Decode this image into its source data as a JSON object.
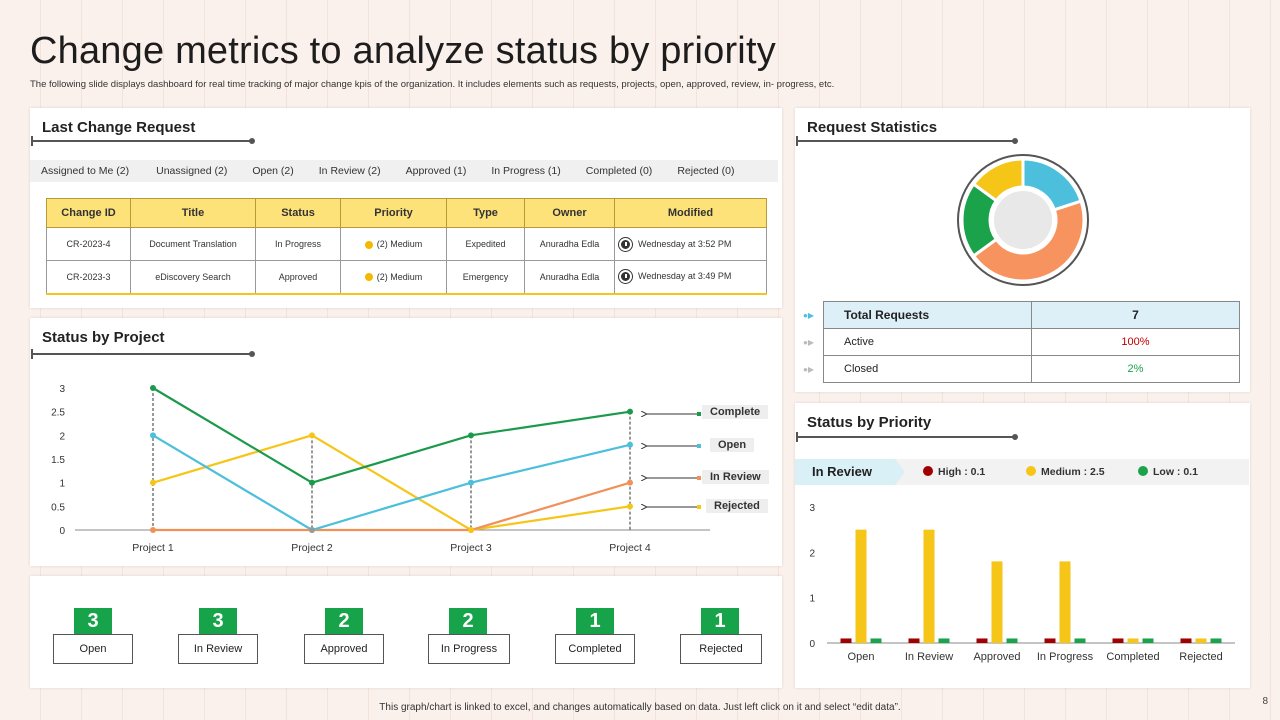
{
  "header": {
    "title": "Change metrics to analyze status by priority",
    "subtitle": "The following slide displays dashboard for real time tracking of major change kpis of the organization. It includes elements such as requests, projects, open, approved, review, in- progress, etc."
  },
  "last_change": {
    "title": "Last Change Request",
    "tabs": [
      "Assigned to Me (2)",
      "Unassigned (2)",
      "Open (2)",
      "In Review (2)",
      "Approved (1)",
      "In Progress (1)",
      "Completed  (0)",
      "Rejected (0)"
    ],
    "columns": [
      "Change ID",
      "Title",
      "Status",
      "Priority",
      "Type",
      "Owner",
      "Modified"
    ],
    "rows": [
      [
        "CR-2023-4",
        "Document Translation",
        "In Progress",
        "(2) Medium",
        "Expedited",
        "Anuradha  Edla",
        "Wednesday at 3:52 PM"
      ],
      [
        "CR-2023-3",
        "eDiscovery Search",
        "Approved",
        "(2) Medium",
        "Emergency",
        "Anuradha  Edla",
        "Wednesday at 3:49 PM"
      ]
    ]
  },
  "status_by_project": {
    "title": "Status by Project",
    "callouts": [
      "Complete",
      "Open",
      "In Review",
      "Rejected"
    ]
  },
  "tiles": [
    {
      "value": "3",
      "label": "Open"
    },
    {
      "value": "3",
      "label": "In Review"
    },
    {
      "value": "2",
      "label": "Approved"
    },
    {
      "value": "2",
      "label": "In Progress"
    },
    {
      "value": "1",
      "label": "Completed"
    },
    {
      "value": "1",
      "label": "Rejected"
    }
  ],
  "request_stats": {
    "title": "Request Statistics",
    "rows": [
      {
        "label": "Total Requests",
        "value": "7"
      },
      {
        "label": "Active",
        "value": "100%"
      },
      {
        "label": "Closed",
        "value": "2%"
      }
    ],
    "colors": {
      "active": "#c00000",
      "closed": "#1aa34a"
    }
  },
  "status_by_priority": {
    "title": "Status by Priority",
    "tag": "In Review",
    "legend": [
      {
        "label": "High : 0.1",
        "color": "#a00000"
      },
      {
        "label": "Medium : 2.5",
        "color": "#f5c518"
      },
      {
        "label": "Low : 0.1",
        "color": "#1aa34a"
      }
    ]
  },
  "chart_data": [
    {
      "type": "line",
      "categories": [
        "Project 1",
        "Project 2",
        "Project 3",
        "Project 4"
      ],
      "ylim": [
        0,
        3
      ],
      "yticks": [
        "0",
        "0.5",
        "1",
        "1.5",
        "2",
        "2.5",
        "3"
      ],
      "series": [
        {
          "name": "Complete",
          "color": "#1a9a4a",
          "values": [
            3,
            1,
            2,
            2.5
          ]
        },
        {
          "name": "Open",
          "color": "#4bbfdc",
          "values": [
            2,
            0,
            1,
            1.8
          ]
        },
        {
          "name": "In Review",
          "color": "#f0915a",
          "values": [
            0,
            0,
            0,
            1
          ]
        },
        {
          "name": "Rejected",
          "color": "#f5c518",
          "values": [
            1,
            2,
            0,
            0.5
          ]
        }
      ]
    },
    {
      "type": "pie",
      "donut": true,
      "values": [
        20,
        45,
        20,
        15
      ],
      "colors": [
        "#4bbfdc",
        "#f7935e",
        "#1aa34a",
        "#f5c518"
      ]
    },
    {
      "type": "bar",
      "categories": [
        "Open",
        "In Review",
        "Approved",
        "In Progress",
        "Completed",
        "Rejected"
      ],
      "ylim": [
        0,
        3
      ],
      "yticks": [
        "0",
        "1",
        "2",
        "3"
      ],
      "series": [
        {
          "name": "High",
          "color": "#a00000",
          "values": [
            0.1,
            0.1,
            0.1,
            0.1,
            0.1,
            0.1
          ]
        },
        {
          "name": "Medium",
          "color": "#f5c518",
          "values": [
            2.5,
            2.5,
            1.8,
            1.8,
            0.1,
            0.1
          ]
        },
        {
          "name": "Low",
          "color": "#1aa34a",
          "values": [
            0.1,
            0.1,
            0.1,
            0.1,
            0.1,
            0.1
          ]
        }
      ]
    }
  ],
  "footer": {
    "note": "This graph/chart is linked to excel, and changes automatically based on data. Just left click on it and select “edit data”.",
    "page": "8"
  }
}
